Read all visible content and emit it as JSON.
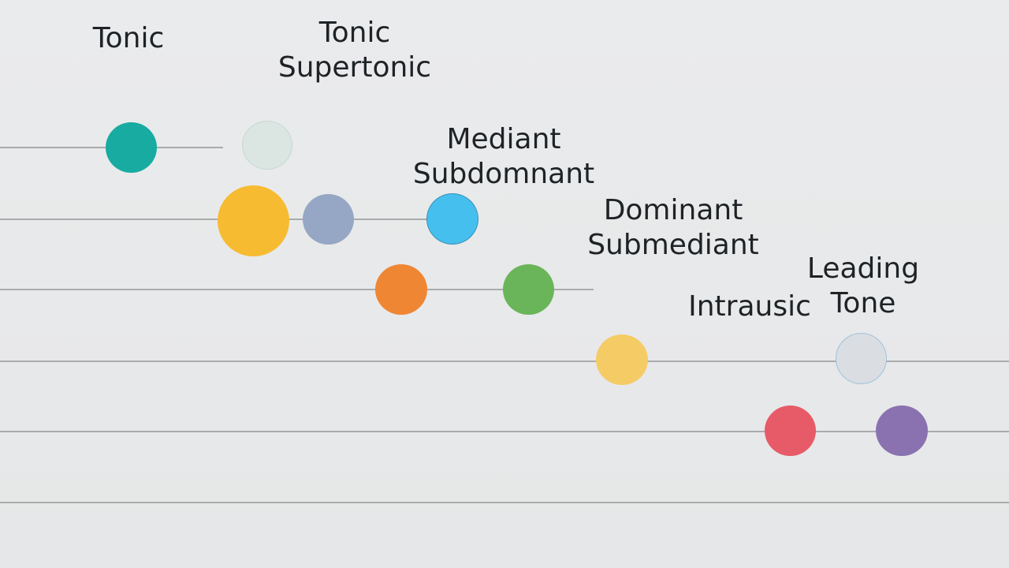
{
  "labels": {
    "tonic": "Tonic",
    "tonic_2": "Tonic",
    "supertonic": "Supertonic",
    "mediant": "Mediant",
    "subdominant": "Subdomnant",
    "dominant": "Dominant",
    "submediant": "Submediant",
    "intrausic": "Intrausic",
    "leading": "Leading",
    "tone": "Tone"
  },
  "notes": [
    {
      "name": "note-teal",
      "color": "#17aba1"
    },
    {
      "name": "note-pale-mint",
      "color": "#dbe6e2"
    },
    {
      "name": "note-yellow-large",
      "color": "#f7bb32"
    },
    {
      "name": "note-slate-blue",
      "color": "#95a7c4"
    },
    {
      "name": "note-sky-blue",
      "color": "#45bfee"
    },
    {
      "name": "note-orange",
      "color": "#ef8634"
    },
    {
      "name": "note-green",
      "color": "#6ab55a"
    },
    {
      "name": "note-light-yellow",
      "color": "#f5cb66"
    },
    {
      "name": "note-pale-gray",
      "color": "#dadde2"
    },
    {
      "name": "note-red",
      "color": "#e75b68"
    },
    {
      "name": "note-purple",
      "color": "#8a72b0"
    }
  ]
}
